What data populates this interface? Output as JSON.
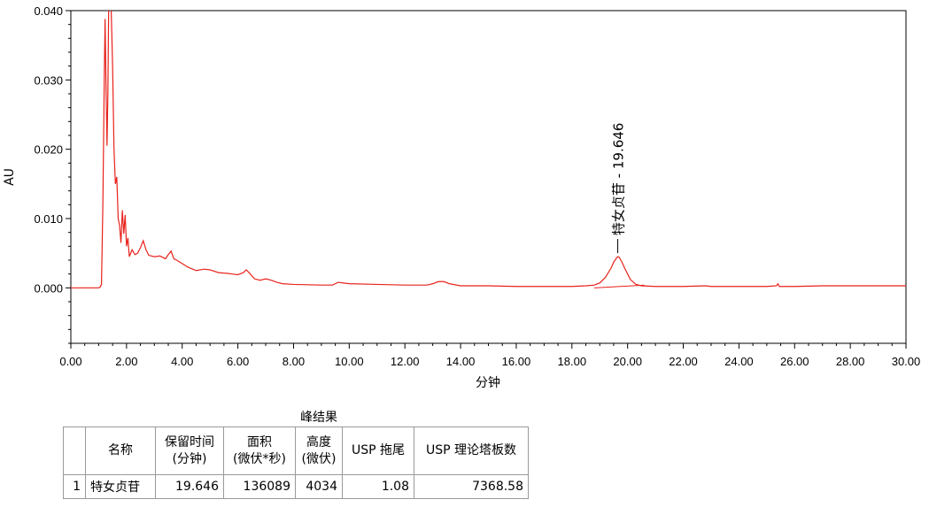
{
  "chart_data": {
    "type": "line",
    "title": "",
    "xlabel": "分钟",
    "ylabel": "AU",
    "xlim": [
      0,
      30
    ],
    "ylim": [
      -0.008,
      0.04
    ],
    "x_ticks": [
      "0.00",
      "2.00",
      "4.00",
      "6.00",
      "8.00",
      "10.00",
      "12.00",
      "14.00",
      "16.00",
      "18.00",
      "20.00",
      "22.00",
      "24.00",
      "26.00",
      "28.00",
      "30.00"
    ],
    "y_ticks": [
      "0.000",
      "0.010",
      "0.020",
      "0.030",
      "0.040"
    ],
    "grid": false,
    "line_color": "#e8221b",
    "series": [
      {
        "x": [
          0,
          1.0,
          1.05,
          1.1,
          1.15,
          1.2,
          1.23,
          1.26,
          1.3,
          1.33,
          1.36,
          1.4,
          1.45,
          1.5,
          1.55,
          1.6,
          1.65,
          1.7,
          1.75,
          1.8,
          1.85,
          1.9,
          1.95,
          2.0,
          2.05,
          2.1,
          2.2,
          2.3,
          2.4,
          2.5,
          2.6,
          2.7,
          2.8,
          3.0,
          3.2,
          3.4,
          3.5,
          3.6,
          3.7,
          3.8,
          4.0,
          4.2,
          4.5,
          4.8,
          5.0,
          5.3,
          5.6,
          5.8,
          6.0,
          6.2,
          6.3,
          6.4,
          6.6,
          6.8,
          7.0,
          7.2,
          7.4,
          7.6,
          8.0,
          9.0,
          9.4,
          9.6,
          9.8,
          10.0,
          11.0,
          12.0,
          12.8,
          13.0,
          13.2,
          13.4,
          13.6,
          14.0,
          15.0,
          16.0,
          17.0,
          18.0,
          18.5,
          18.8,
          19.0,
          19.2,
          19.4,
          19.5,
          19.6,
          19.646,
          19.7,
          19.8,
          19.9,
          20.1,
          20.3,
          20.5,
          21.0,
          22.0,
          22.8,
          23.0,
          24.0,
          25.0,
          25.35,
          25.4,
          25.45,
          26.0,
          27.0,
          28.0,
          29.0,
          30.0
        ],
        "y": [
          0.0,
          0.0,
          0.0001,
          0.0005,
          0.012,
          0.03,
          0.0388,
          0.03,
          0.0205,
          0.028,
          0.0409,
          0.042,
          0.04,
          0.032,
          0.02,
          0.015,
          0.016,
          0.01,
          0.009,
          0.0065,
          0.0112,
          0.0078,
          0.0105,
          0.006,
          0.0072,
          0.0045,
          0.0055,
          0.0048,
          0.005,
          0.0058,
          0.0068,
          0.0055,
          0.0047,
          0.0045,
          0.0046,
          0.0042,
          0.0048,
          0.0053,
          0.0042,
          0.004,
          0.0035,
          0.003,
          0.0025,
          0.0027,
          0.0026,
          0.0022,
          0.0021,
          0.002,
          0.0019,
          0.0022,
          0.0026,
          0.0022,
          0.0013,
          0.0011,
          0.0013,
          0.0011,
          0.0008,
          0.0006,
          0.0005,
          0.0004,
          0.0004,
          0.0008,
          0.0007,
          0.0006,
          0.0005,
          0.0004,
          0.0004,
          0.0006,
          0.0009,
          0.0009,
          0.0006,
          0.0003,
          0.0003,
          0.0002,
          0.0002,
          0.0002,
          0.0003,
          0.0004,
          0.0007,
          0.0015,
          0.0028,
          0.0037,
          0.0043,
          0.0045,
          0.0044,
          0.0037,
          0.0028,
          0.0012,
          0.0005,
          0.0003,
          0.0002,
          0.0002,
          0.0003,
          0.0002,
          0.0002,
          0.0002,
          0.0003,
          0.0006,
          0.0002,
          0.0002,
          0.0003,
          0.0003,
          0.0003,
          0.0003
        ]
      }
    ],
    "baseline": {
      "x": [
        18.8,
        20.6
      ],
      "y": [
        0.0,
        0.0004
      ]
    },
    "annotations": [
      {
        "text": "特女贞苷 - 19.646",
        "x": 19.646,
        "y": 0.0045
      }
    ]
  },
  "results_table": {
    "title": "峰结果",
    "headers": [
      "",
      "名称",
      "保留时间\n(分钟)",
      "面积\n(微伏*秒)",
      "高度\n(微伏)",
      "USP 拖尾",
      "USP 理论塔板数"
    ],
    "rows": [
      [
        "1",
        "特女贞苷",
        "19.646",
        "136089",
        "4034",
        "1.08",
        "7368.58"
      ]
    ]
  }
}
